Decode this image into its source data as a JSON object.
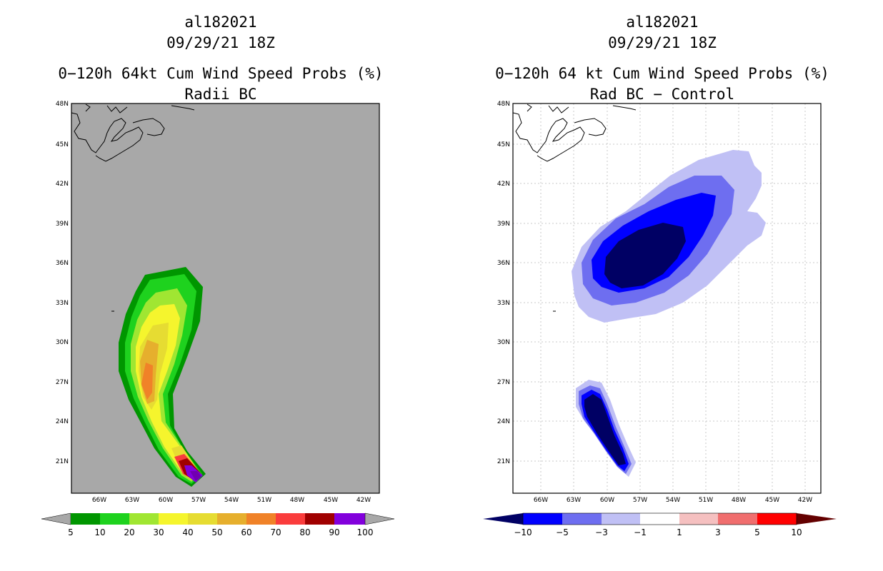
{
  "left": {
    "storm_id": "al182021",
    "datetime": "09/29/21 18Z",
    "title": "0−120h 64kt Cum Wind Speed Probs (%)",
    "subtitle": "Radii BC",
    "lat_labels": [
      "48N",
      "45N",
      "42N",
      "39N",
      "36N",
      "33N",
      "30N",
      "27N",
      "24N",
      "21N"
    ],
    "lon_labels": [
      "66W",
      "63W",
      "60W",
      "57W",
      "54W",
      "51W",
      "48W",
      "45W",
      "42W"
    ],
    "colorbar": {
      "labels": [
        "5",
        "10",
        "20",
        "30",
        "40",
        "50",
        "60",
        "70",
        "80",
        "90",
        "100"
      ],
      "colors": [
        "#009600",
        "#1ed21e",
        "#a0e632",
        "#f5f52d",
        "#e6dc32",
        "#e6af2d",
        "#f08228",
        "#fa3c3c",
        "#a00000",
        "#8200dc"
      ],
      "background": "#a8a8a8"
    }
  },
  "right": {
    "storm_id": "al182021",
    "datetime": "09/29/21 18Z",
    "title": "0−120h 64 kt Cum Wind Speed Probs (%)",
    "subtitle": "Rad BC − Control",
    "lat_labels": [
      "48N",
      "45N",
      "42N",
      "39N",
      "36N",
      "33N",
      "30N",
      "27N",
      "24N",
      "21N"
    ],
    "lon_labels": [
      "66W",
      "63W",
      "60W",
      "57W",
      "54W",
      "51W",
      "48W",
      "45W",
      "42W"
    ],
    "colorbar": {
      "labels": [
        "−10",
        "−5",
        "−3",
        "−1",
        "1",
        "3",
        "5",
        "10"
      ],
      "colors": [
        "#000064",
        "#0000ff",
        "#6e6ef0",
        "#c0c0f5",
        "#ffffff",
        "#f5c0c0",
        "#f06e6e",
        "#ff0000",
        "#640000"
      ]
    }
  }
}
